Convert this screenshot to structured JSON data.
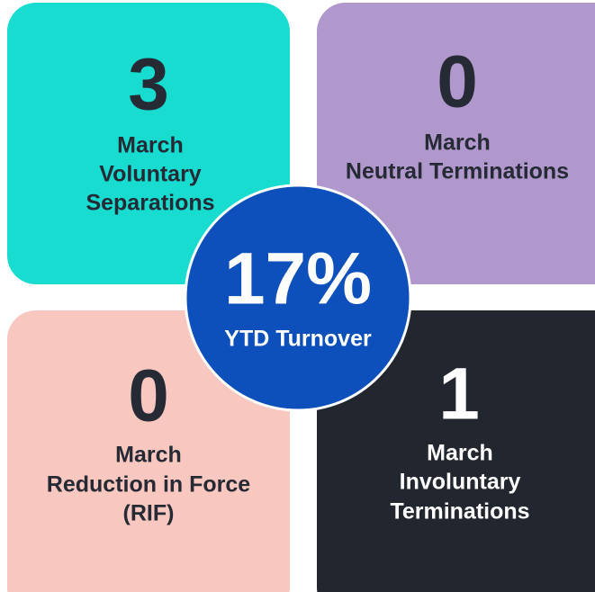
{
  "tiles": [
    {
      "value": "3",
      "lines": [
        "March",
        "Voluntary",
        "Separations"
      ]
    },
    {
      "value": "0",
      "lines": [
        "March",
        "Neutral Terminations"
      ]
    },
    {
      "value": "0",
      "lines": [
        "March",
        "Reduction in Force",
        "(RIF)"
      ]
    },
    {
      "value": "1",
      "lines": [
        "March",
        "Involuntary",
        "Terminations"
      ]
    }
  ],
  "center": {
    "value": "17%",
    "label": "YTD Turnover"
  }
}
